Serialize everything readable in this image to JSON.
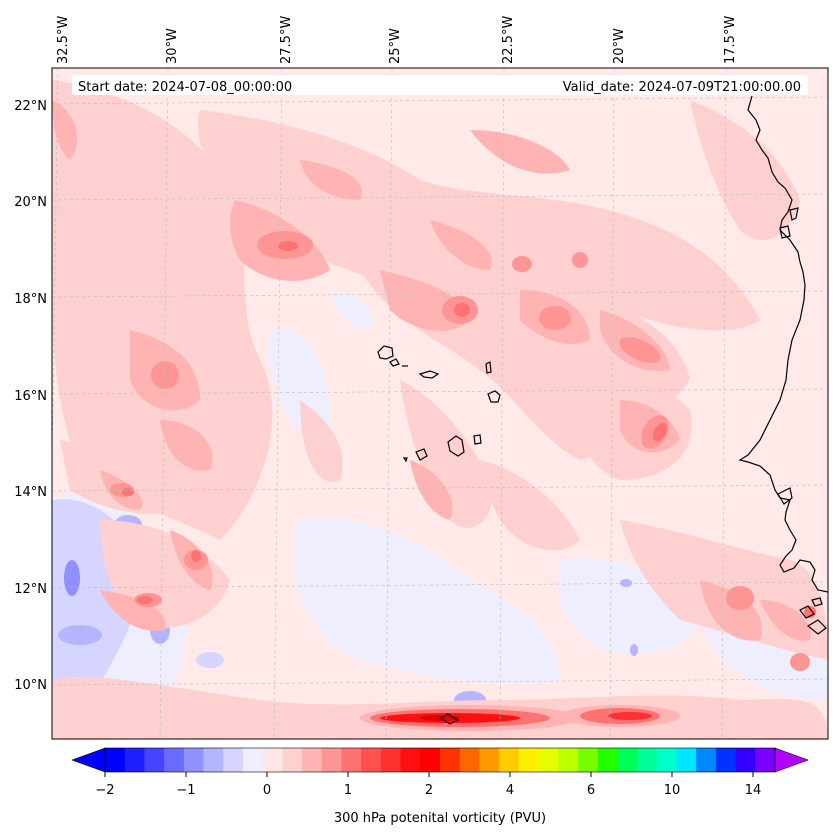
{
  "header": {
    "start_date": "Start date: 2024-07-08_00:00:00",
    "valid_date": "Valid_date: 2024-07-09T21:00:00.00"
  },
  "axes": {
    "lon_labels": [
      "32.5°W",
      "30°W",
      "27.5°W",
      "25°W",
      "22.5°W",
      "20°W",
      "17.5°W"
    ],
    "lat_labels": [
      "22°N",
      "20°N",
      "18°N",
      "16°N",
      "14°N",
      "12°N",
      "10°N"
    ]
  },
  "colorbar": {
    "label": "300 hPa potenital vorticity (PVU)",
    "ticks": [
      "−2",
      "−1",
      "0",
      "1",
      "2",
      "4",
      "6",
      "10",
      "14"
    ],
    "colors": [
      "#0000ff",
      "#2020ff",
      "#4545ff",
      "#6a6aff",
      "#9090ff",
      "#b5b5ff",
      "#d5d5ff",
      "#eeeeff",
      "#ffe6e6",
      "#ffd0d0",
      "#ffb3b3",
      "#ff9494",
      "#ff7272",
      "#ff5050",
      "#ff3030",
      "#ff1010",
      "#ff0000",
      "#ff3300",
      "#ff6600",
      "#ff9900",
      "#ffcc00",
      "#ffee00",
      "#e6ff00",
      "#bbff00",
      "#77ff00",
      "#22ff00",
      "#00ff55",
      "#00ff99",
      "#00ffcc",
      "#00e6ff",
      "#0088ff",
      "#0033ff",
      "#3300ff",
      "#7a00ff"
    ],
    "under_color": "#0000ff",
    "over_color": "#b400ff"
  },
  "map": {
    "background_color": "#ffe9e9",
    "region": "Eastern tropical Atlantic, Cape Verde Islands and West African coast"
  }
}
